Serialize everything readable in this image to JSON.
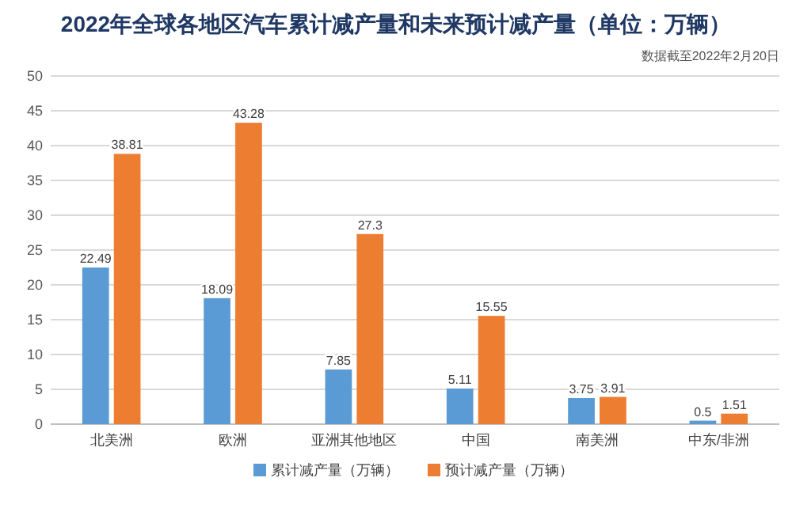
{
  "chart_data": {
    "type": "bar",
    "title": "2022年全球各地区汽车累计减产量和未来预计减产量（单位：万辆）",
    "annotations": [
      "数据截至2022年2月20日"
    ],
    "categories": [
      "北美洲",
      "欧洲",
      "亚洲其他地区",
      "中国",
      "南美洲",
      "中东/非洲"
    ],
    "series": [
      {
        "name": "累计减产量（万辆）",
        "color": "#5b9bd5",
        "values": [
          22.49,
          18.09,
          7.85,
          5.11,
          3.75,
          0.5
        ]
      },
      {
        "name": "预计减产量（万辆）",
        "color": "#ed7d31",
        "values": [
          38.81,
          43.28,
          27.3,
          15.55,
          3.91,
          1.51
        ]
      }
    ],
    "ylim": [
      0,
      50
    ],
    "yticks": [
      0,
      5,
      10,
      15,
      20,
      25,
      30,
      35,
      40,
      45,
      50
    ],
    "grid": "y",
    "legend": "bottom",
    "data_labels": true
  }
}
